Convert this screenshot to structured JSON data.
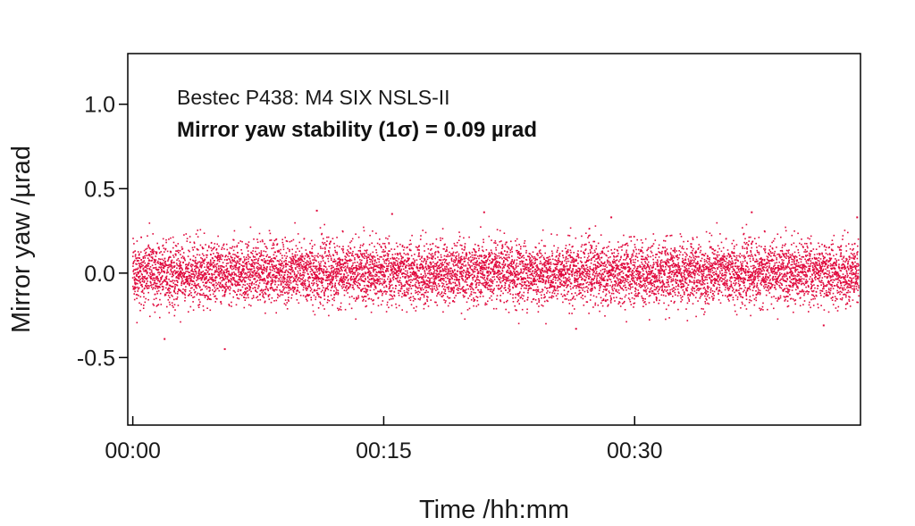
{
  "chart_data": {
    "type": "scatter",
    "annotations": [
      "Bestec P438: M4 SIX NSLS-II",
      "Mirror yaw stability (1σ) = 0.09 µrad"
    ],
    "xlabel": "Time /hh:mm",
    "ylabel": "Mirror yaw /µrad",
    "x_ticks": [
      {
        "minutes": 0,
        "label": "00:00"
      },
      {
        "minutes": 15,
        "label": "00:15"
      },
      {
        "minutes": 30,
        "label": "00:30"
      }
    ],
    "y_ticks": [
      {
        "value": 1.0,
        "label": "1.0"
      },
      {
        "value": 0.5,
        "label": "0.5"
      },
      {
        "value": 0.0,
        "label": "0.0"
      },
      {
        "value": -0.5,
        "label": "-0.5"
      }
    ],
    "xlim_minutes": [
      -0.3,
      43.5
    ],
    "ylim": [
      -0.9,
      1.3
    ],
    "series": [
      {
        "x_range_minutes": [
          0,
          43.4
        ],
        "mean": 0.0,
        "std": 0.09,
        "point_count": 9000,
        "outliers": [
          {
            "minute": 5.5,
            "value": -0.45
          },
          {
            "minute": 1.9,
            "value": -0.39
          },
          {
            "minute": 11.0,
            "value": 0.37
          },
          {
            "minute": 21.0,
            "value": 0.36
          },
          {
            "minute": 37.0,
            "value": 0.36
          },
          {
            "minute": 15.5,
            "value": 0.35
          },
          {
            "minute": 28.6,
            "value": 0.33
          },
          {
            "minute": 43.3,
            "value": 0.33
          },
          {
            "minute": 26.5,
            "value": -0.33
          },
          {
            "minute": 41.3,
            "value": -0.31
          }
        ]
      }
    ],
    "colors": {
      "points": "#e0083c",
      "axis": "#000000"
    },
    "grid": false
  }
}
